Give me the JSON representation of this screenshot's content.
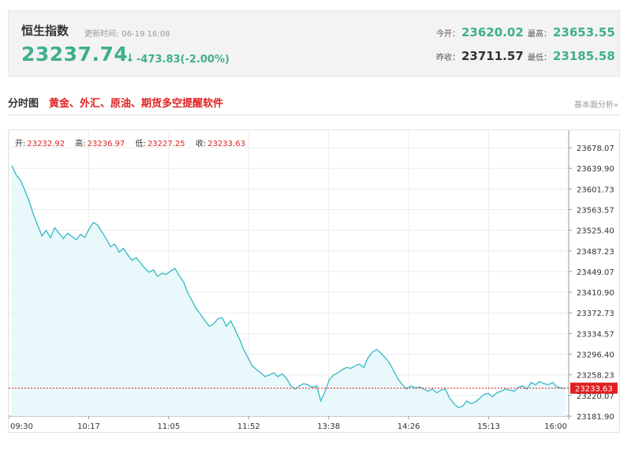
{
  "quote": {
    "name": "恒生指数",
    "updated_label": "更新时间:",
    "updated_time": "06-19 16:08",
    "price": "23237.74",
    "arrow": "↓",
    "change": "-473.83(-2.00%)",
    "open_label": "今开：",
    "open": "23620.02",
    "high_label": "最高：",
    "high": "23653.55",
    "prev_close_label": "昨收：",
    "prev_close": "23711.57",
    "low_label": "最低：",
    "low": "23185.58"
  },
  "section": {
    "title": "分时图",
    "promo": "黄金、外汇、原油、期货多空提醒软件",
    "link": "基本面分析»"
  },
  "ohlc": {
    "open_label": "开:",
    "open": "23232.92",
    "high_label": "高:",
    "high": "23236.97",
    "low_label": "低:",
    "low": "23227.25",
    "close_label": "收:",
    "close": "23233.63"
  },
  "colors": {
    "down": "#3fae8f",
    "up": "#e02020",
    "line": "#35b8c4",
    "fill": "#e8f8fb"
  },
  "chart_data": {
    "type": "area",
    "x_tick_labels": [
      "09:30",
      "10:17",
      "11:05",
      "11:52",
      "13:38",
      "14:26",
      "15:13",
      "16:00"
    ],
    "y_tick_labels": [
      "23678.07",
      "23639.90",
      "23601.73",
      "23563.57",
      "23525.40",
      "23487.23",
      "23449.07",
      "23410.90",
      "23372.73",
      "23334.57",
      "23296.40",
      "23258.23",
      "23220.07",
      "23181.90"
    ],
    "ylim": [
      23181.9,
      23678.07
    ],
    "last_value": "23233.63",
    "series": [
      {
        "values": [
          23645,
          23628,
          23618,
          23600,
          23580,
          23555,
          23535,
          23515,
          23525,
          23512,
          23530,
          23520,
          23510,
          23520,
          23514,
          23508,
          23518,
          23512,
          23528,
          23540,
          23535,
          23522,
          23510,
          23495,
          23500,
          23485,
          23492,
          23480,
          23470,
          23475,
          23465,
          23455,
          23448,
          23452,
          23440,
          23446,
          23444,
          23450,
          23455,
          23442,
          23430,
          23410,
          23395,
          23380,
          23370,
          23358,
          23348,
          23352,
          23362,
          23364,
          23348,
          23358,
          23342,
          23325,
          23305,
          23290,
          23275,
          23268,
          23262,
          23255,
          23258,
          23262,
          23255,
          23260,
          23252,
          23238,
          23232,
          23238,
          23242,
          23240,
          23235,
          23238,
          23210,
          23228,
          23250,
          23258,
          23262,
          23268,
          23272,
          23270,
          23275,
          23278,
          23272,
          23290,
          23300,
          23305,
          23298,
          23290,
          23280,
          23265,
          23250,
          23240,
          23232,
          23238,
          23234,
          23236,
          23232,
          23228,
          23232,
          23225,
          23230,
          23232,
          23215,
          23205,
          23198,
          23200,
          23210,
          23205,
          23208,
          23215,
          23222,
          23224,
          23218,
          23225,
          23228,
          23232,
          23230,
          23228,
          23235,
          23238,
          23232,
          23244,
          23240,
          23246,
          23242,
          23240,
          23244,
          23236,
          23234,
          23233.63
        ]
      }
    ]
  }
}
